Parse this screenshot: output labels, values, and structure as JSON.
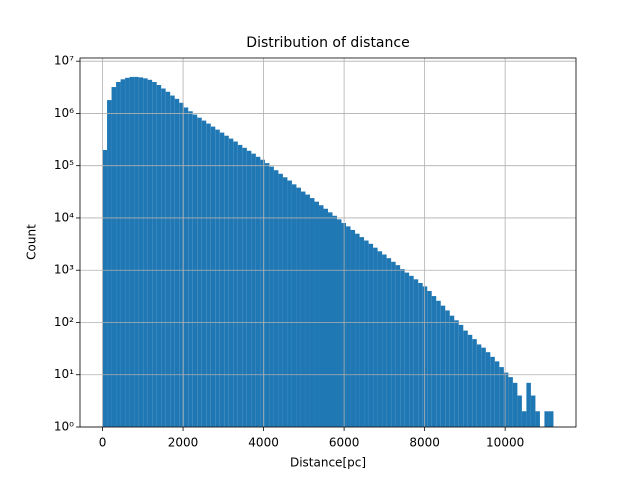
{
  "chart_data": {
    "type": "histogram",
    "title": "Distribution of distance",
    "xlabel": "Distance[pc]",
    "ylabel": "Count",
    "color": "#1f77b4",
    "grid": true,
    "log_y": true,
    "bins": [
      0,
      112,
      224,
      336,
      448,
      560,
      672,
      784,
      896,
      1008,
      1120,
      1232,
      1344,
      1456,
      1568,
      1680,
      1792,
      1904,
      2016,
      2128,
      2240,
      2352,
      2464,
      2576,
      2688,
      2800,
      2912,
      3024,
      3136,
      3248,
      3360,
      3472,
      3584,
      3696,
      3808,
      3920,
      4032,
      4144,
      4256,
      4368,
      4480,
      4592,
      4704,
      4816,
      4928,
      5040,
      5152,
      5264,
      5376,
      5488,
      5600,
      5712,
      5824,
      5936,
      6048,
      6160,
      6272,
      6384,
      6496,
      6608,
      6720,
      6832,
      6944,
      7056,
      7168,
      7280,
      7392,
      7504,
      7616,
      7728,
      7840,
      7952,
      8064,
      8176,
      8288,
      8400,
      8512,
      8624,
      8736,
      8848,
      8960,
      9072,
      9184,
      9296,
      9408,
      9520,
      9632,
      9744,
      9856,
      9968,
      10080,
      10192,
      10304,
      10416,
      10528,
      10640,
      10752,
      10864,
      10976,
      11088,
      11200
    ],
    "values": [
      200000,
      1800000,
      3200000,
      4000000,
      4500000,
      4800000,
      5000000,
      5000000,
      4900000,
      4700000,
      4400000,
      4000000,
      3500000,
      3000000,
      2600000,
      2200000,
      1900000,
      1600000,
      1300000,
      1100000,
      950000,
      830000,
      730000,
      640000,
      560000,
      490000,
      430000,
      375000,
      330000,
      290000,
      250000,
      220000,
      193000,
      170000,
      148000,
      130000,
      112000,
      96000,
      82000,
      70000,
      60000,
      52000,
      44000,
      38000,
      32000,
      28000,
      24000,
      20500,
      17500,
      15000,
      12800,
      11000,
      9400,
      8000,
      6900,
      5900,
      5000,
      4300,
      3700,
      3200,
      2700,
      2300,
      2000,
      1700,
      1450,
      1250,
      1050,
      900,
      780,
      670,
      570,
      490,
      400,
      320,
      260,
      210,
      170,
      135,
      110,
      90,
      70,
      58,
      48,
      38,
      33,
      27,
      22,
      18,
      14,
      11,
      9,
      7,
      4,
      2,
      7,
      4,
      2,
      0,
      2,
      2
    ],
    "xlim": [
      -560,
      11760
    ],
    "xticks": [
      0,
      2000,
      4000,
      6000,
      8000,
      10000
    ],
    "ylim": [
      1,
      11500000
    ],
    "yticks": [
      {
        "value": 1,
        "label": "10⁰"
      },
      {
        "value": 10,
        "label": "10¹"
      },
      {
        "value": 100,
        "label": "10²"
      },
      {
        "value": 1000,
        "label": "10³"
      },
      {
        "value": 10000,
        "label": "10⁴"
      },
      {
        "value": 100000,
        "label": "10⁵"
      },
      {
        "value": 1000000,
        "label": "10⁶"
      },
      {
        "value": 10000000,
        "label": "10⁷"
      }
    ]
  }
}
